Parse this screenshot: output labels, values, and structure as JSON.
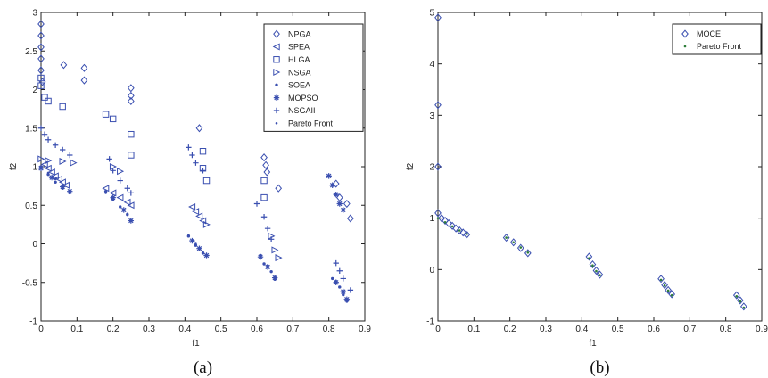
{
  "chart_data": [
    {
      "type": "scatter",
      "panel_label": "(a)",
      "xlabel": "f1",
      "ylabel": "f2",
      "xlim": [
        0,
        0.9
      ],
      "ylim": [
        -1,
        3
      ],
      "xticks": [
        "0",
        "0.1",
        "0.2",
        "0.3",
        "0.4",
        "0.5",
        "0.6",
        "0.7",
        "0.8",
        "0.9"
      ],
      "yticks": [
        "-1",
        "-0.5",
        "0",
        "0.5",
        "1",
        "1.5",
        "2",
        "2.5",
        "3"
      ],
      "legend_position": "top-right",
      "marker_color": "#3a4fb0",
      "series": [
        {
          "name": "NPGA",
          "marker": "diamond",
          "points": [
            [
              0,
              2.85
            ],
            [
              0,
              2.7
            ],
            [
              0,
              2.55
            ],
            [
              0,
              2.4
            ],
            [
              0,
              2.25
            ],
            [
              0.004,
              2.1
            ],
            [
              0.063,
              2.32
            ],
            [
              0.12,
              2.28
            ],
            [
              0.12,
              2.12
            ],
            [
              0.25,
              2.02
            ],
            [
              0.25,
              1.92
            ],
            [
              0.25,
              1.85
            ],
            [
              0.44,
              1.5
            ],
            [
              0.62,
              1.12
            ],
            [
              0.625,
              1.02
            ],
            [
              0.628,
              0.93
            ],
            [
              0.66,
              0.72
            ],
            [
              0.82,
              0.78
            ],
            [
              0.83,
              0.6
            ],
            [
              0.85,
              0.52
            ],
            [
              0.86,
              0.33
            ]
          ]
        },
        {
          "name": "SPEA",
          "marker": "triangle-left",
          "points": [
            [
              0.01,
              1.03
            ],
            [
              0.02,
              0.98
            ],
            [
              0.03,
              0.93
            ],
            [
              0.04,
              0.88
            ],
            [
              0.05,
              0.84
            ],
            [
              0.06,
              0.8
            ],
            [
              0.07,
              0.76
            ],
            [
              0.18,
              0.72
            ],
            [
              0.2,
              0.66
            ],
            [
              0.22,
              0.6
            ],
            [
              0.24,
              0.54
            ],
            [
              0.25,
              0.5
            ],
            [
              0.42,
              0.48
            ],
            [
              0.43,
              0.42
            ],
            [
              0.44,
              0.36
            ],
            [
              0.45,
              0.3
            ]
          ]
        },
        {
          "name": "HLGA",
          "marker": "square",
          "points": [
            [
              0,
              2.15
            ],
            [
              0,
              2.05
            ],
            [
              0.01,
              1.9
            ],
            [
              0.02,
              1.85
            ],
            [
              0.06,
              1.78
            ],
            [
              0.18,
              1.68
            ],
            [
              0.2,
              1.62
            ],
            [
              0.25,
              1.42
            ],
            [
              0.25,
              1.15
            ],
            [
              0.45,
              1.2
            ],
            [
              0.45,
              0.98
            ],
            [
              0.46,
              0.82
            ],
            [
              0.62,
              0.82
            ],
            [
              0.62,
              0.6
            ]
          ]
        },
        {
          "name": "NSGA",
          "marker": "triangle-right",
          "points": [
            [
              0,
              1.1
            ],
            [
              0.02,
              1.08
            ],
            [
              0.06,
              1.07
            ],
            [
              0.09,
              1.05
            ],
            [
              0.2,
              1.0
            ],
            [
              0.22,
              0.94
            ],
            [
              0.46,
              0.25
            ],
            [
              0.64,
              0.1
            ],
            [
              0.65,
              -0.08
            ],
            [
              0.66,
              -0.18
            ]
          ]
        },
        {
          "name": "SOEA",
          "marker": "dot",
          "points": [
            [
              0.0,
              1.0
            ],
            [
              0.02,
              0.9
            ],
            [
              0.04,
              0.8
            ],
            [
              0.06,
              0.72
            ],
            [
              0.08,
              0.66
            ],
            [
              0.18,
              0.68
            ],
            [
              0.2,
              0.58
            ],
            [
              0.22,
              0.48
            ],
            [
              0.24,
              0.38
            ],
            [
              0.25,
              0.3
            ],
            [
              0.41,
              0.1
            ],
            [
              0.43,
              -0.02
            ],
            [
              0.45,
              -0.12
            ],
            [
              0.61,
              -0.15
            ],
            [
              0.62,
              -0.26
            ],
            [
              0.64,
              -0.36
            ],
            [
              0.65,
              -0.46
            ],
            [
              0.81,
              -0.45
            ],
            [
              0.83,
              -0.56
            ],
            [
              0.84,
              -0.66
            ],
            [
              0.85,
              -0.74
            ]
          ]
        },
        {
          "name": "MOPSO",
          "marker": "star",
          "points": [
            [
              0,
              0.98
            ],
            [
              0.03,
              0.86
            ],
            [
              0.06,
              0.74
            ],
            [
              0.08,
              0.68
            ],
            [
              0.2,
              0.6
            ],
            [
              0.23,
              0.44
            ],
            [
              0.25,
              0.3
            ],
            [
              0.42,
              0.04
            ],
            [
              0.44,
              -0.06
            ],
            [
              0.46,
              -0.15
            ],
            [
              0.61,
              -0.17
            ],
            [
              0.63,
              -0.3
            ],
            [
              0.65,
              -0.44
            ],
            [
              0.8,
              0.88
            ],
            [
              0.81,
              0.76
            ],
            [
              0.82,
              0.64
            ],
            [
              0.83,
              0.52
            ],
            [
              0.84,
              0.44
            ],
            [
              0.82,
              -0.5
            ],
            [
              0.84,
              -0.62
            ],
            [
              0.85,
              -0.72
            ]
          ]
        },
        {
          "name": "NSGAII",
          "marker": "plus",
          "points": [
            [
              0,
              1.5
            ],
            [
              0.01,
              1.42
            ],
            [
              0.02,
              1.35
            ],
            [
              0.04,
              1.28
            ],
            [
              0.06,
              1.22
            ],
            [
              0.08,
              1.15
            ],
            [
              0.19,
              1.1
            ],
            [
              0.2,
              0.95
            ],
            [
              0.22,
              0.82
            ],
            [
              0.24,
              0.72
            ],
            [
              0.25,
              0.66
            ],
            [
              0.41,
              1.25
            ],
            [
              0.42,
              1.15
            ],
            [
              0.43,
              1.05
            ],
            [
              0.45,
              0.95
            ],
            [
              0.6,
              0.52
            ],
            [
              0.62,
              0.35
            ],
            [
              0.63,
              0.2
            ],
            [
              0.64,
              0.06
            ],
            [
              0.82,
              -0.25
            ],
            [
              0.83,
              -0.35
            ],
            [
              0.84,
              -0.45
            ],
            [
              0.86,
              -0.6
            ]
          ]
        },
        {
          "name": "Pareto Front",
          "marker": "small-dot",
          "points": [
            [
              0,
              1.0
            ],
            [
              0.02,
              0.92
            ],
            [
              0.04,
              0.84
            ],
            [
              0.06,
              0.76
            ],
            [
              0.08,
              0.69
            ],
            [
              0.18,
              0.66
            ],
            [
              0.2,
              0.57
            ],
            [
              0.22,
              0.48
            ],
            [
              0.24,
              0.39
            ],
            [
              0.25,
              0.31
            ],
            [
              0.41,
              0.11
            ],
            [
              0.43,
              0.0
            ],
            [
              0.45,
              -0.11
            ],
            [
              0.61,
              -0.15
            ],
            [
              0.63,
              -0.28
            ],
            [
              0.65,
              -0.43
            ],
            [
              0.82,
              -0.48
            ],
            [
              0.84,
              -0.62
            ],
            [
              0.85,
              -0.75
            ]
          ]
        }
      ]
    },
    {
      "type": "scatter",
      "panel_label": "(b)",
      "xlabel": "f1",
      "ylabel": "f2",
      "xlim": [
        0,
        0.9
      ],
      "ylim": [
        -1,
        5
      ],
      "xticks": [
        "0",
        "0.1",
        "0.2",
        "0.3",
        "0.4",
        "0.5",
        "0.6",
        "0.7",
        "0.8",
        "0.9"
      ],
      "yticks": [
        "-1",
        "0",
        "1",
        "2",
        "3",
        "4",
        "5"
      ],
      "legend_position": "top-right",
      "series": [
        {
          "name": "MOCE",
          "marker": "diamond",
          "color": "#3a4fb0",
          "points": [
            [
              0,
              4.9
            ],
            [
              0,
              3.2
            ],
            [
              0,
              2.0
            ],
            [
              0,
              1.1
            ],
            [
              0.01,
              1.0
            ],
            [
              0.02,
              0.95
            ],
            [
              0.03,
              0.9
            ],
            [
              0.04,
              0.85
            ],
            [
              0.05,
              0.8
            ],
            [
              0.06,
              0.76
            ],
            [
              0.07,
              0.72
            ],
            [
              0.08,
              0.68
            ],
            [
              0.19,
              0.62
            ],
            [
              0.21,
              0.53
            ],
            [
              0.23,
              0.42
            ],
            [
              0.25,
              0.32
            ],
            [
              0.42,
              0.25
            ],
            [
              0.43,
              0.1
            ],
            [
              0.44,
              -0.02
            ],
            [
              0.45,
              -0.1
            ],
            [
              0.62,
              -0.18
            ],
            [
              0.63,
              -0.3
            ],
            [
              0.64,
              -0.4
            ],
            [
              0.65,
              -0.48
            ],
            [
              0.83,
              -0.5
            ],
            [
              0.84,
              -0.6
            ],
            [
              0.85,
              -0.72
            ]
          ]
        },
        {
          "name": "Pareto Front",
          "marker": "small-dot",
          "color": "#2e7d3a",
          "points": [
            [
              0,
              1.0
            ],
            [
              0.02,
              0.92
            ],
            [
              0.04,
              0.84
            ],
            [
              0.06,
              0.76
            ],
            [
              0.08,
              0.69
            ],
            [
              0.19,
              0.62
            ],
            [
              0.21,
              0.53
            ],
            [
              0.23,
              0.43
            ],
            [
              0.25,
              0.33
            ],
            [
              0.42,
              0.22
            ],
            [
              0.43,
              0.08
            ],
            [
              0.44,
              -0.03
            ],
            [
              0.45,
              -0.11
            ],
            [
              0.62,
              -0.2
            ],
            [
              0.63,
              -0.31
            ],
            [
              0.64,
              -0.41
            ],
            [
              0.65,
              -0.5
            ],
            [
              0.83,
              -0.52
            ],
            [
              0.84,
              -0.62
            ],
            [
              0.85,
              -0.74
            ]
          ]
        }
      ]
    }
  ]
}
